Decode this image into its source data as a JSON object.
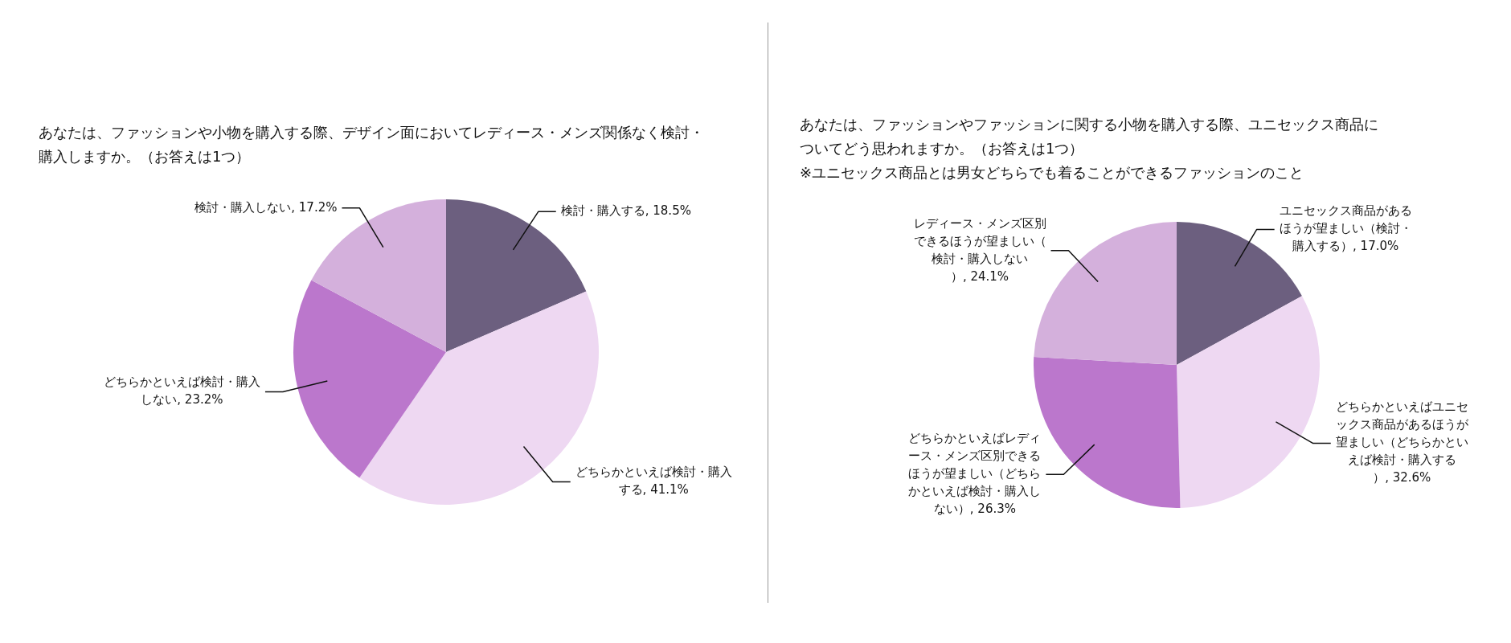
{
  "chart_data": [
    {
      "type": "pie",
      "title": "あなたは、ファッションや小物を購入する際、デザイン面においてレディース・メンズ関係なく検討・購入しますか。（お答えは1つ）",
      "categories": [
        "検討・購入する",
        "どちらかといえば検討・購入する",
        "どちらかといえば検討・購入しない",
        "検討・購入しない"
      ],
      "values": [
        18.5,
        41.1,
        23.2,
        17.2
      ],
      "value_labels": [
        "18.5%",
        "41.1%",
        "23.2%",
        "17.2%"
      ],
      "colors": [
        "#6c5f7f",
        "#eed8f2",
        "#bb77cc",
        "#d4b0dc"
      ],
      "legend": false
    },
    {
      "type": "pie",
      "title": "あなたは、ファッションやファッションに関する小物を購入する際、ユニセックス商品についてどう思われますか。（お答えは1つ）",
      "subtitle": "※ユニセックス商品とは男女どちらでも着ることができるファッションのこと",
      "categories": [
        "ユニセックス商品があるほうが望ましい（検討・購入する）",
        "どちらかといえばユニセックス商品があるほうが望ましい（どちらかといえば検討・購入する）",
        "どちらかといえばレディース・メンズ区別できるほうが望ましい（どちらかといえば検討・購入しない）",
        "レディース・メンズ区別できるほうが望ましい（検討・購入しない）"
      ],
      "values": [
        17.0,
        32.6,
        26.3,
        24.1
      ],
      "value_labels": [
        "17.0%",
        "32.6%",
        "26.3%",
        "24.1%"
      ],
      "colors": [
        "#6c5f7f",
        "#eed8f2",
        "#bb77cc",
        "#d4b0dc"
      ],
      "legend": false
    }
  ]
}
